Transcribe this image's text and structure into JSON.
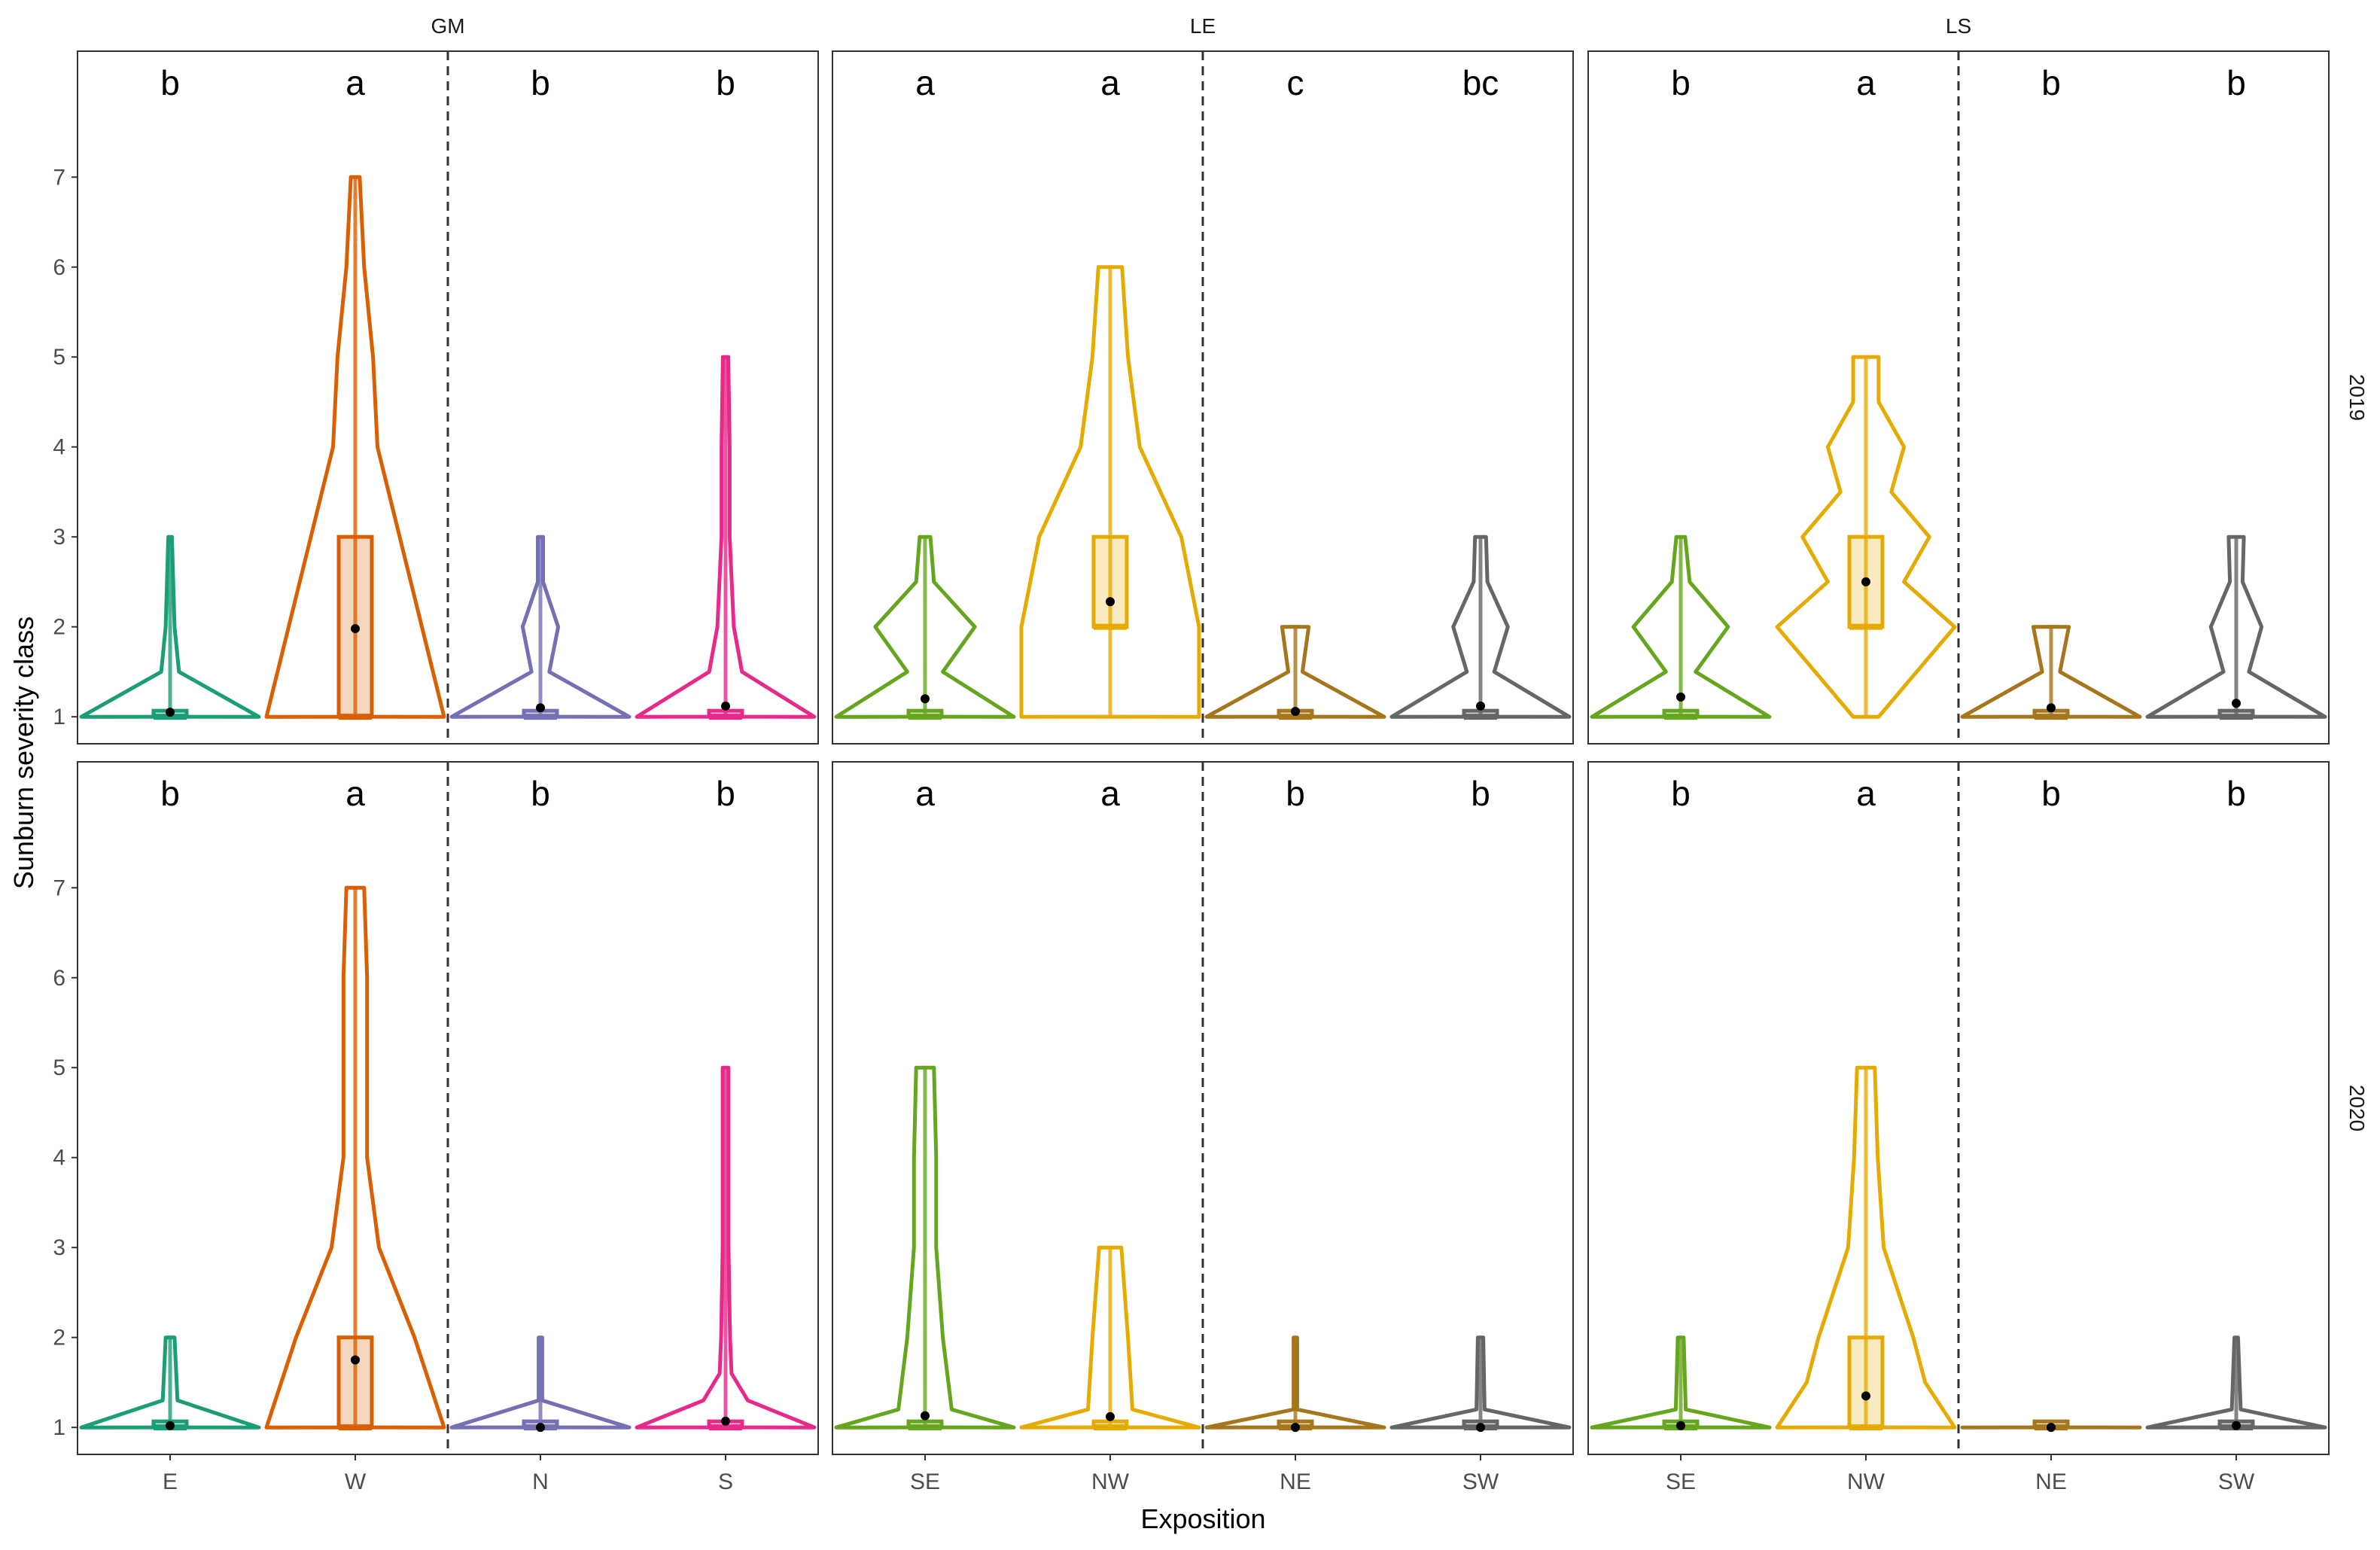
{
  "chart_data": {
    "type": "violin",
    "xlabel": "Exposition",
    "ylabel": "Sunburn severity class",
    "ylim": [
      0.7,
      8.4
    ],
    "yticks": [
      1,
      2,
      3,
      4,
      5,
      6,
      7
    ],
    "sites": [
      "GM",
      "LE",
      "LS"
    ],
    "years": [
      "2019",
      "2020"
    ],
    "colors": {
      "E": "#1b9e77",
      "W": "#d95f02",
      "N": "#7570b3",
      "S": "#e7298a",
      "SE": "#66a61e",
      "NW": "#e6ab02",
      "NE": "#a6761d",
      "SW": "#666666"
    },
    "panels": [
      {
        "site": "GM",
        "year": "2019",
        "groups": [
          {
            "label": "E",
            "letter": "b",
            "mean": 1.05,
            "q1": 1,
            "median": 1,
            "q3": 1,
            "min": 1,
            "max": 3,
            "density": [
              [
                1,
                1.0
              ],
              [
                1.5,
                0.1
              ],
              [
                2,
                0.05
              ],
              [
                3,
                0.02
              ]
            ]
          },
          {
            "label": "W",
            "letter": "a",
            "mean": 1.98,
            "q1": 1,
            "median": 1,
            "q3": 3,
            "min": 1,
            "max": 7,
            "density": [
              [
                1,
                0.2
              ],
              [
                2,
                0.15
              ],
              [
                3,
                0.1
              ],
              [
                4,
                0.05
              ],
              [
                5,
                0.04
              ],
              [
                6,
                0.02
              ],
              [
                7,
                0.01
              ]
            ]
          },
          {
            "label": "N",
            "letter": "b",
            "mean": 1.1,
            "q1": 1,
            "median": 1,
            "q3": 1,
            "min": 1,
            "max": 3,
            "density": [
              [
                1,
                1.0
              ],
              [
                1.5,
                0.1
              ],
              [
                2,
                0.2
              ],
              [
                2.5,
                0.03
              ],
              [
                3,
                0.03
              ]
            ]
          },
          {
            "label": "S",
            "letter": "b",
            "mean": 1.12,
            "q1": 1,
            "median": 1,
            "q3": 1,
            "min": 1,
            "max": 5,
            "density": [
              [
                1,
                0.65
              ],
              [
                1.5,
                0.12
              ],
              [
                2,
                0.06
              ],
              [
                3,
                0.03
              ],
              [
                4,
                0.03
              ],
              [
                5,
                0.02
              ]
            ]
          }
        ]
      },
      {
        "site": "LE",
        "year": "2019",
        "groups": [
          {
            "label": "SE",
            "letter": "a",
            "mean": 1.2,
            "q1": 1,
            "median": 1,
            "q3": 1,
            "min": 1,
            "max": 3,
            "density": [
              [
                1,
                0.5
              ],
              [
                1.5,
                0.1
              ],
              [
                2,
                0.28
              ],
              [
                2.5,
                0.05
              ],
              [
                3,
                0.03
              ]
            ]
          },
          {
            "label": "NW",
            "letter": "a",
            "mean": 2.28,
            "q1": 2,
            "median": 2,
            "q3": 3,
            "min": 1,
            "max": 6,
            "density": [
              [
                1,
                0.15
              ],
              [
                2,
                0.15
              ],
              [
                3,
                0.12
              ],
              [
                4,
                0.05
              ],
              [
                5,
                0.03
              ],
              [
                6,
                0.02
              ]
            ]
          },
          {
            "label": "NE",
            "letter": "c",
            "mean": 1.06,
            "q1": 1,
            "median": 1,
            "q3": 1,
            "min": 1,
            "max": 2,
            "density": [
              [
                1,
                1.0
              ],
              [
                1.5,
                0.08
              ],
              [
                2,
                0.15
              ]
            ]
          },
          {
            "label": "SW",
            "letter": "bc",
            "mean": 1.12,
            "q1": 1,
            "median": 1,
            "q3": 1,
            "min": 1,
            "max": 3,
            "density": [
              [
                1,
                0.65
              ],
              [
                1.5,
                0.1
              ],
              [
                2,
                0.2
              ],
              [
                2.5,
                0.05
              ],
              [
                3,
                0.04
              ]
            ]
          }
        ]
      },
      {
        "site": "LS",
        "year": "2019",
        "groups": [
          {
            "label": "SE",
            "letter": "b",
            "mean": 1.22,
            "q1": 1,
            "median": 1,
            "q3": 1,
            "min": 1,
            "max": 3,
            "density": [
              [
                1,
                0.6
              ],
              [
                1.5,
                0.1
              ],
              [
                2,
                0.32
              ],
              [
                2.5,
                0.06
              ],
              [
                3,
                0.03
              ]
            ]
          },
          {
            "label": "NW",
            "letter": "a",
            "mean": 2.5,
            "q1": 2,
            "median": 2,
            "q3": 3,
            "min": 1,
            "max": 5,
            "density": [
              [
                1,
                0.05
              ],
              [
                1.5,
                0.2
              ],
              [
                2,
                0.35
              ],
              [
                2.5,
                0.15
              ],
              [
                3,
                0.25
              ],
              [
                3.5,
                0.1
              ],
              [
                4,
                0.15
              ],
              [
                4.5,
                0.05
              ],
              [
                5,
                0.05
              ]
            ]
          },
          {
            "label": "NE",
            "letter": "b",
            "mean": 1.1,
            "q1": 1,
            "median": 1,
            "q3": 1,
            "min": 1,
            "max": 2,
            "density": [
              [
                1,
                1.0
              ],
              [
                1.5,
                0.1
              ],
              [
                2,
                0.2
              ]
            ]
          },
          {
            "label": "SW",
            "letter": "b",
            "mean": 1.15,
            "q1": 1,
            "median": 1,
            "q3": 1,
            "min": 1,
            "max": 3,
            "density": [
              [
                1,
                0.7
              ],
              [
                1.5,
                0.1
              ],
              [
                2,
                0.2
              ],
              [
                2.5,
                0.05
              ],
              [
                3,
                0.06
              ]
            ]
          }
        ]
      },
      {
        "site": "GM",
        "year": "2020",
        "groups": [
          {
            "label": "E",
            "letter": "b",
            "mean": 1.02,
            "q1": 1,
            "median": 1,
            "q3": 1,
            "min": 1,
            "max": 2,
            "density": [
              [
                1,
                0.6
              ],
              [
                1.3,
                0.05
              ],
              [
                2,
                0.03
              ]
            ]
          },
          {
            "label": "W",
            "letter": "a",
            "mean": 1.75,
            "q1": 1,
            "median": 1,
            "q3": 2,
            "min": 1,
            "max": 7,
            "density": [
              [
                1,
                0.15
              ],
              [
                2,
                0.1
              ],
              [
                3,
                0.04
              ],
              [
                4,
                0.02
              ],
              [
                5,
                0.02
              ],
              [
                6,
                0.02
              ],
              [
                7,
                0.015
              ]
            ]
          },
          {
            "label": "N",
            "letter": "b",
            "mean": 1.0,
            "q1": 1,
            "median": 1,
            "q3": 1,
            "min": 1,
            "max": 2,
            "density": [
              [
                1,
                1.0
              ],
              [
                1.3,
                0.02
              ],
              [
                2,
                0.02
              ]
            ]
          },
          {
            "label": "S",
            "letter": "b",
            "mean": 1.07,
            "q1": 1,
            "median": 1,
            "q3": 1,
            "min": 1,
            "max": 5,
            "density": [
              [
                1,
                0.6
              ],
              [
                1.3,
                0.15
              ],
              [
                1.6,
                0.04
              ],
              [
                2,
                0.03
              ],
              [
                3,
                0.02
              ],
              [
                4,
                0.02
              ],
              [
                5,
                0.02
              ]
            ]
          }
        ]
      },
      {
        "site": "LE",
        "year": "2020",
        "groups": [
          {
            "label": "SE",
            "letter": "a",
            "mean": 1.13,
            "q1": 1,
            "median": 1,
            "q3": 1,
            "min": 1,
            "max": 5,
            "density": [
              [
                1,
                0.2
              ],
              [
                1.2,
                0.06
              ],
              [
                2,
                0.04
              ],
              [
                3,
                0.025
              ],
              [
                4,
                0.025
              ],
              [
                5,
                0.02
              ]
            ]
          },
          {
            "label": "NW",
            "letter": "a",
            "mean": 1.12,
            "q1": 1,
            "median": 1,
            "q3": 1,
            "min": 1,
            "max": 3,
            "density": [
              [
                1,
                0.2
              ],
              [
                1.2,
                0.05
              ],
              [
                2,
                0.04
              ],
              [
                3,
                0.025
              ]
            ]
          },
          {
            "label": "NE",
            "letter": "b",
            "mean": 1.0,
            "q1": 1,
            "median": 1,
            "q3": 1,
            "min": 1,
            "max": 2,
            "density": [
              [
                1,
                1.0
              ],
              [
                1.2,
                0.02
              ],
              [
                2,
                0.02
              ]
            ]
          },
          {
            "label": "SW",
            "letter": "b",
            "mean": 1.0,
            "q1": 1,
            "median": 1,
            "q3": 1,
            "min": 1,
            "max": 2,
            "density": [
              [
                1,
                0.65
              ],
              [
                1.2,
                0.03
              ],
              [
                2,
                0.02
              ]
            ]
          }
        ]
      },
      {
        "site": "LS",
        "year": "2020",
        "groups": [
          {
            "label": "SE",
            "letter": "b",
            "mean": 1.02,
            "q1": 1,
            "median": 1,
            "q3": 1,
            "min": 1,
            "max": 2,
            "density": [
              [
                1,
                0.9
              ],
              [
                1.2,
                0.05
              ],
              [
                2,
                0.03
              ]
            ]
          },
          {
            "label": "NW",
            "letter": "a",
            "mean": 1.35,
            "q1": 1,
            "median": 1,
            "q3": 2,
            "min": 1,
            "max": 5,
            "density": [
              [
                1,
                0.15
              ],
              [
                1.5,
                0.1
              ],
              [
                2,
                0.08
              ],
              [
                3,
                0.03
              ],
              [
                4,
                0.02
              ],
              [
                5,
                0.015
              ]
            ]
          },
          {
            "label": "NE",
            "letter": "b",
            "mean": 1.0,
            "q1": 1,
            "median": 1,
            "q3": 1,
            "min": 1,
            "max": 1,
            "density": [
              [
                1,
                0.2
              ]
            ]
          },
          {
            "label": "SW",
            "letter": "b",
            "mean": 1.02,
            "q1": 1,
            "median": 1,
            "q3": 1,
            "min": 1,
            "max": 2,
            "density": [
              [
                1,
                1.0
              ],
              [
                1.2,
                0.05
              ],
              [
                2,
                0.02
              ]
            ]
          }
        ]
      }
    ]
  }
}
